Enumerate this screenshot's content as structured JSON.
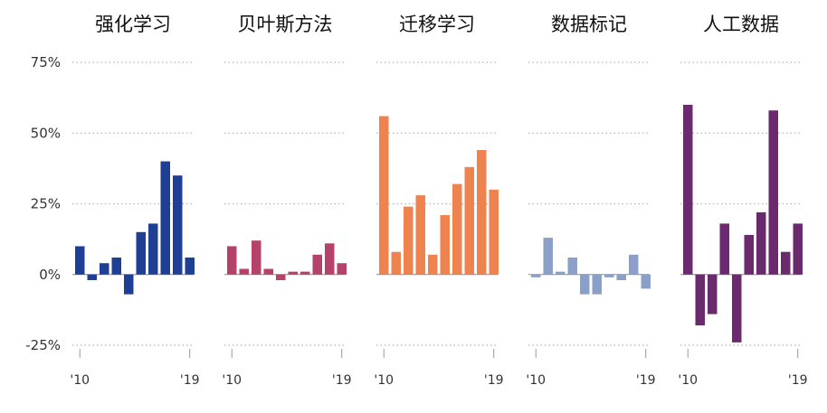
{
  "chart_data": {
    "type": "bar",
    "layout": "small-multiples",
    "y_axis": {
      "ylim": [
        -0.25,
        0.75
      ],
      "ticks": [
        {
          "value": 0.75,
          "label": "75%"
        },
        {
          "value": 0.5,
          "label": "50%"
        },
        {
          "value": 0.25,
          "label": "25%"
        },
        {
          "value": 0.0,
          "label": "0%"
        },
        {
          "value": -0.25,
          "label": "-25%"
        }
      ],
      "grid": "dotted"
    },
    "x_axis": {
      "years": [
        2010,
        2011,
        2012,
        2013,
        2014,
        2015,
        2016,
        2017,
        2018,
        2019
      ],
      "tick_labels": [
        "'10",
        "'19"
      ]
    },
    "panels": [
      {
        "title": "强化学习",
        "color": "#1f3f94",
        "values": [
          0.1,
          -0.02,
          0.04,
          0.06,
          -0.07,
          0.15,
          0.18,
          0.4,
          0.35,
          0.06
        ]
      },
      {
        "title": "贝叶斯方法",
        "color": "#b5426b",
        "values": [
          0.1,
          0.02,
          0.12,
          0.02,
          -0.02,
          0.01,
          0.01,
          0.07,
          0.11,
          0.04
        ]
      },
      {
        "title": "迁移学习",
        "color": "#ee8350",
        "values": [
          0.56,
          0.08,
          0.24,
          0.28,
          0.07,
          0.21,
          0.32,
          0.38,
          0.44,
          0.3
        ]
      },
      {
        "title": "数据标记",
        "color": "#8ba0c8",
        "values": [
          -0.01,
          0.13,
          0.01,
          0.06,
          -0.07,
          -0.07,
          -0.01,
          -0.02,
          0.07,
          -0.05
        ]
      },
      {
        "title": "人工数据",
        "color": "#6b2a6e",
        "values": [
          0.6,
          -0.18,
          -0.14,
          0.18,
          -0.24,
          0.14,
          0.22,
          0.58,
          0.08,
          0.18
        ]
      }
    ]
  }
}
